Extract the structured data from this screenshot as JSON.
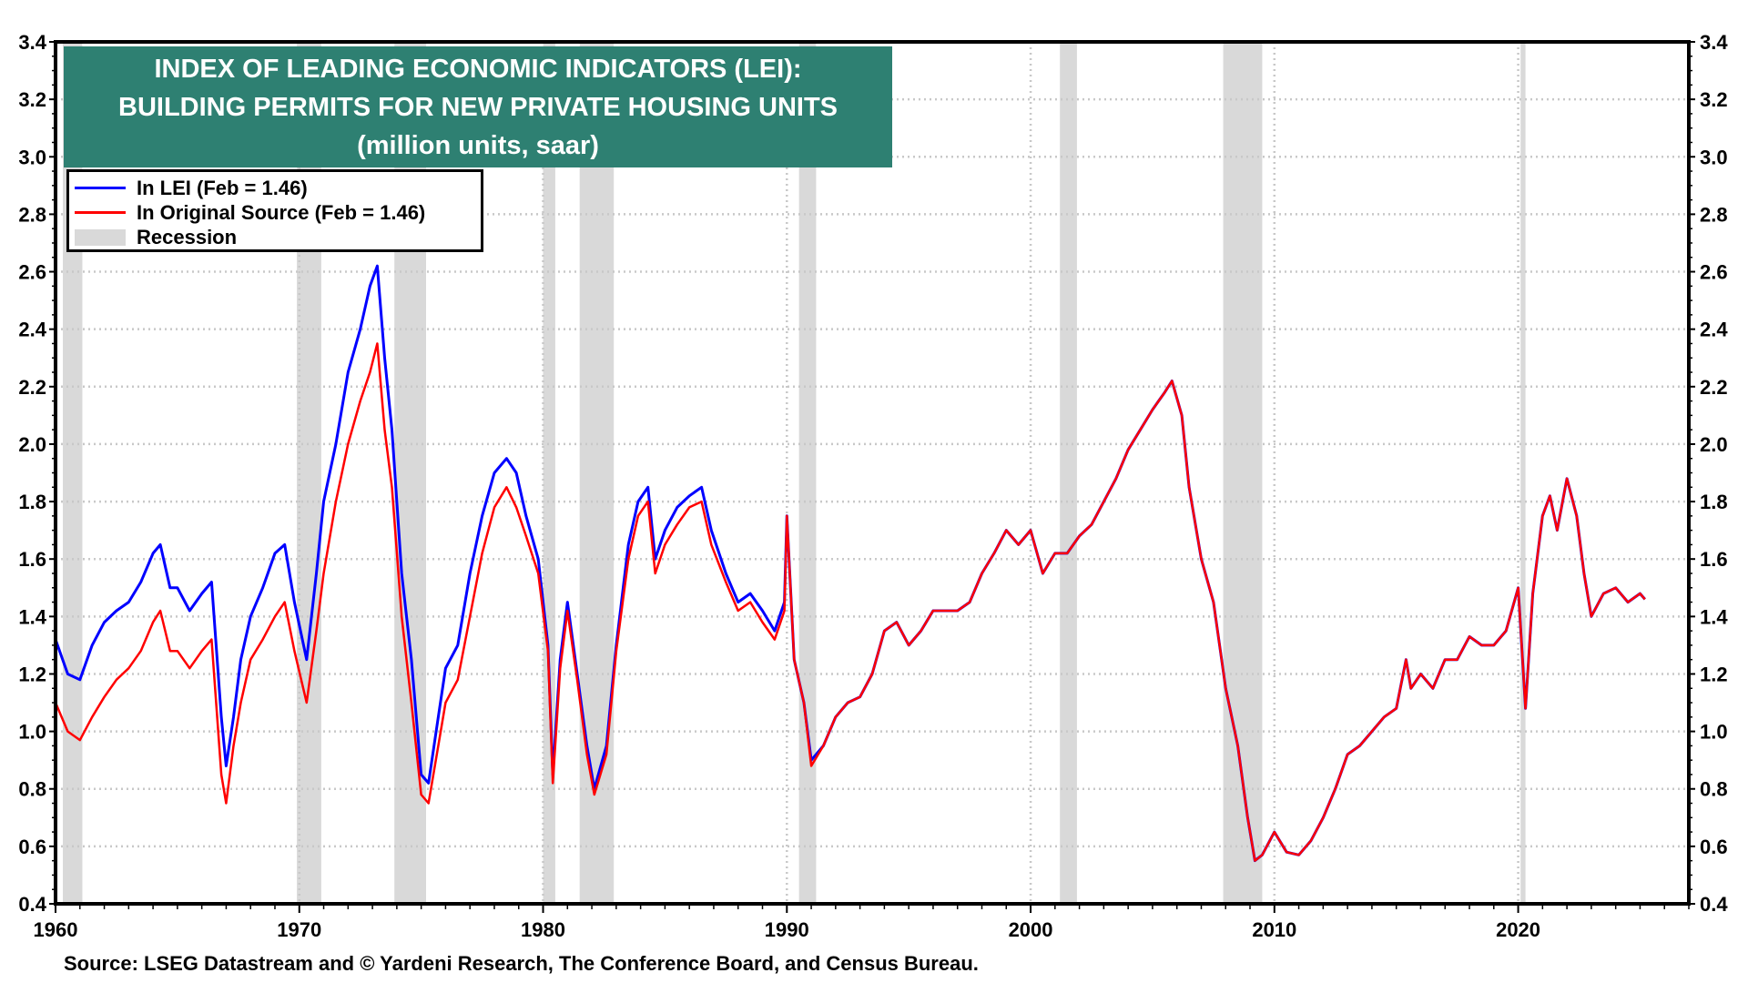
{
  "chart_data": {
    "type": "line",
    "title": "INDEX OF LEADING ECONOMIC INDICATORS (LEI):",
    "subtitle": "BUILDING PERMITS FOR NEW PRIVATE HOUSING UNITS",
    "units": "(million units, saar)",
    "xlim": [
      1960,
      2027
    ],
    "ylim": [
      0.4,
      3.4
    ],
    "x_ticks": [
      "1960",
      "1970",
      "1980",
      "1990",
      "2000",
      "2010",
      "2020"
    ],
    "y_ticks": [
      "0.4",
      "0.6",
      "0.8",
      "1.0",
      "1.2",
      "1.4",
      "1.6",
      "1.8",
      "2.0",
      "2.2",
      "2.4",
      "2.6",
      "2.8",
      "3.0",
      "3.2",
      "3.4"
    ],
    "grid": true,
    "legend_placement": "top-left",
    "recessions": [
      [
        1960.3,
        1961.1
      ],
      [
        1969.9,
        1970.9
      ],
      [
        1973.9,
        1975.2
      ],
      [
        1980.0,
        1980.5
      ],
      [
        1981.5,
        1982.9
      ],
      [
        1990.5,
        1991.2
      ],
      [
        2001.2,
        2001.9
      ],
      [
        2007.9,
        2009.5
      ],
      [
        2020.1,
        2020.3
      ]
    ],
    "x": [
      1960.0,
      1960.5,
      1961.0,
      1961.5,
      1962.0,
      1962.5,
      1963.0,
      1963.5,
      1964.0,
      1964.3,
      1964.7,
      1965.0,
      1965.5,
      1966.0,
      1966.4,
      1966.8,
      1967.0,
      1967.3,
      1967.6,
      1968.0,
      1968.5,
      1969.0,
      1969.4,
      1969.8,
      1970.3,
      1970.7,
      1971.0,
      1971.5,
      1972.0,
      1972.5,
      1972.9,
      1973.2,
      1973.5,
      1973.8,
      1974.2,
      1974.6,
      1975.0,
      1975.3,
      1975.7,
      1976.0,
      1976.5,
      1977.0,
      1977.5,
      1978.0,
      1978.5,
      1978.9,
      1979.3,
      1979.8,
      1980.2,
      1980.4,
      1980.7,
      1981.0,
      1981.4,
      1981.8,
      1982.1,
      1982.6,
      1983.0,
      1983.5,
      1983.9,
      1984.3,
      1984.6,
      1985.0,
      1985.5,
      1986.0,
      1986.5,
      1986.9,
      1987.5,
      1988.0,
      1988.5,
      1989.0,
      1989.5,
      1989.9,
      1990.0,
      1990.3,
      1990.7,
      1991.0,
      1991.5,
      1992.0,
      1992.5,
      1993.0,
      1993.5,
      1994.0,
      1994.5,
      1995.0,
      1995.5,
      1996.0,
      1996.5,
      1997.0,
      1997.5,
      1998.0,
      1998.5,
      1999.0,
      1999.5,
      2000.0,
      2000.5,
      2001.0,
      2001.5,
      2002.0,
      2002.5,
      2003.0,
      2003.5,
      2004.0,
      2004.5,
      2005.0,
      2005.5,
      2005.8,
      2006.2,
      2006.5,
      2007.0,
      2007.5,
      2008.0,
      2008.5,
      2008.9,
      2009.2,
      2009.5,
      2010.0,
      2010.5,
      2011.0,
      2011.5,
      2012.0,
      2012.5,
      2013.0,
      2013.5,
      2014.0,
      2014.5,
      2015.0,
      2015.4,
      2015.6,
      2016.0,
      2016.5,
      2017.0,
      2017.5,
      2018.0,
      2018.5,
      2019.0,
      2019.5,
      2020.0,
      2020.3,
      2020.6,
      2021.0,
      2021.3,
      2021.6,
      2022.0,
      2022.4,
      2022.7,
      2023.0,
      2023.5,
      2024.0,
      2024.5,
      2025.0,
      2025.2
    ],
    "series": [
      {
        "name": "In LEI (Feb = 1.46)",
        "color": "#0000ff",
        "values": [
          1.32,
          1.2,
          1.18,
          1.3,
          1.38,
          1.42,
          1.45,
          1.52,
          1.62,
          1.65,
          1.5,
          1.5,
          1.42,
          1.48,
          1.52,
          1.05,
          0.88,
          1.05,
          1.25,
          1.4,
          1.5,
          1.62,
          1.65,
          1.45,
          1.25,
          1.55,
          1.8,
          2.0,
          2.25,
          2.4,
          2.55,
          2.62,
          2.3,
          2.05,
          1.55,
          1.25,
          0.85,
          0.82,
          1.05,
          1.22,
          1.3,
          1.55,
          1.75,
          1.9,
          1.95,
          1.9,
          1.75,
          1.6,
          1.3,
          0.85,
          1.25,
          1.45,
          1.2,
          0.95,
          0.8,
          0.95,
          1.3,
          1.65,
          1.8,
          1.85,
          1.6,
          1.7,
          1.78,
          1.82,
          1.85,
          1.7,
          1.55,
          1.45,
          1.48,
          1.42,
          1.35,
          1.45,
          1.75,
          1.25,
          1.1,
          0.9,
          0.95,
          1.05,
          1.1,
          1.12,
          1.2,
          1.35,
          1.38,
          1.3,
          1.35,
          1.42,
          1.42,
          1.42,
          1.45,
          1.55,
          1.62,
          1.7,
          1.65,
          1.7,
          1.55,
          1.62,
          1.62,
          1.68,
          1.72,
          1.8,
          1.88,
          1.98,
          2.05,
          2.12,
          2.18,
          2.22,
          2.1,
          1.85,
          1.6,
          1.45,
          1.15,
          0.95,
          0.7,
          0.55,
          0.57,
          0.65,
          0.58,
          0.57,
          0.62,
          0.7,
          0.8,
          0.92,
          0.95,
          1.0,
          1.05,
          1.08,
          1.25,
          1.15,
          1.2,
          1.15,
          1.25,
          1.25,
          1.33,
          1.3,
          1.3,
          1.35,
          1.5,
          1.08,
          1.48,
          1.75,
          1.82,
          1.7,
          1.88,
          1.75,
          1.55,
          1.4,
          1.48,
          1.5,
          1.45,
          1.48,
          1.46
        ]
      },
      {
        "name": "In Original Source (Feb = 1.46)",
        "color": "#ff0000",
        "values": [
          1.1,
          1.0,
          0.97,
          1.05,
          1.12,
          1.18,
          1.22,
          1.28,
          1.38,
          1.42,
          1.28,
          1.28,
          1.22,
          1.28,
          1.32,
          0.85,
          0.75,
          0.95,
          1.1,
          1.25,
          1.32,
          1.4,
          1.45,
          1.28,
          1.1,
          1.35,
          1.55,
          1.8,
          2.0,
          2.15,
          2.25,
          2.35,
          2.05,
          1.85,
          1.4,
          1.1,
          0.78,
          0.75,
          0.95,
          1.1,
          1.18,
          1.4,
          1.62,
          1.78,
          1.85,
          1.78,
          1.68,
          1.55,
          1.28,
          0.82,
          1.22,
          1.42,
          1.18,
          0.92,
          0.78,
          0.92,
          1.28,
          1.6,
          1.75,
          1.8,
          1.55,
          1.65,
          1.72,
          1.78,
          1.8,
          1.65,
          1.52,
          1.42,
          1.45,
          1.38,
          1.32,
          1.42,
          1.75,
          1.25,
          1.1,
          0.88,
          0.95,
          1.05,
          1.1,
          1.12,
          1.2,
          1.35,
          1.38,
          1.3,
          1.35,
          1.42,
          1.42,
          1.42,
          1.45,
          1.55,
          1.62,
          1.7,
          1.65,
          1.7,
          1.55,
          1.62,
          1.62,
          1.68,
          1.72,
          1.8,
          1.88,
          1.98,
          2.05,
          2.12,
          2.18,
          2.22,
          2.1,
          1.85,
          1.6,
          1.45,
          1.15,
          0.95,
          0.7,
          0.55,
          0.57,
          0.65,
          0.58,
          0.57,
          0.62,
          0.7,
          0.8,
          0.92,
          0.95,
          1.0,
          1.05,
          1.08,
          1.25,
          1.15,
          1.2,
          1.15,
          1.25,
          1.25,
          1.33,
          1.3,
          1.3,
          1.35,
          1.5,
          1.08,
          1.48,
          1.75,
          1.82,
          1.7,
          1.88,
          1.75,
          1.55,
          1.4,
          1.48,
          1.5,
          1.45,
          1.48,
          1.46
        ]
      }
    ],
    "legend": {
      "lei": "In LEI (Feb = 1.46)",
      "orig": "In Original Source (Feb = 1.46)",
      "recession": "Recession"
    },
    "recession_color": "#d9d9d9",
    "title_bg": "#2e8072",
    "source": "Source: LSEG Datastream and © Yardeni Research, The Conference Board, and Census Bureau."
  }
}
